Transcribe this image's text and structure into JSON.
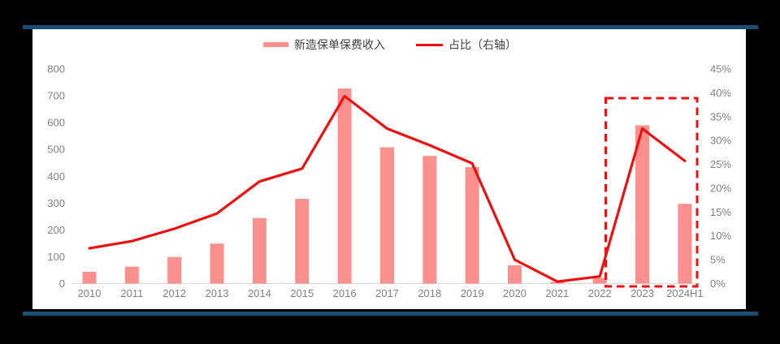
{
  "frame": {
    "canvas_bg": "#000000",
    "panel_bg": "#ffffff",
    "accent_bar_color": "#1B4F72"
  },
  "legend": {
    "items": [
      {
        "swatch": "bar-swatch",
        "label": "新造保单保费收入",
        "color": "#F9908E"
      },
      {
        "swatch": "line-swatch",
        "label": "占比（右轴）",
        "color": "#EE1111"
      }
    ]
  },
  "chart_data": {
    "type": "bar",
    "subtype": "bar+line combo, dual axis",
    "title": "",
    "categories": [
      "2010",
      "2011",
      "2012",
      "2013",
      "2014",
      "2015",
      "2016",
      "2017",
      "2018",
      "2019",
      "2020",
      "2021",
      "2022",
      "2023",
      "2024H1"
    ],
    "series": [
      {
        "name": "新造保单保费收入",
        "type": "bar",
        "axis": "left",
        "color": "#F9908E",
        "values": [
          44,
          63,
          99,
          149,
          244,
          316,
          727,
          508,
          476,
          434,
          68,
          6,
          21,
          590,
          297
        ]
      },
      {
        "name": "占比（右轴）",
        "type": "line",
        "axis": "right",
        "color": "#EE1111",
        "values": [
          7.4,
          8.9,
          11.5,
          14.7,
          21.4,
          24.1,
          39.3,
          32.5,
          29.0,
          25.2,
          5.0,
          0.4,
          1.5,
          32.5,
          25.7
        ]
      }
    ],
    "left_axis": {
      "min": 0,
      "max": 800,
      "step": 100,
      "tick_labels": [
        "0",
        "100",
        "200",
        "300",
        "400",
        "500",
        "600",
        "700",
        "800"
      ]
    },
    "right_axis": {
      "min": 0,
      "max": 45,
      "step": 5,
      "tick_labels": [
        "0%",
        "5%",
        "10%",
        "15%",
        "20%",
        "25%",
        "30%",
        "35%",
        "40%",
        "45%"
      ]
    },
    "gridlines": false,
    "legend_position": "top-center",
    "axis_text_color": "#808080",
    "axis_line_color": "#D9D9D9",
    "highlight_box": {
      "categories": [
        "2023",
        "2024H1"
      ],
      "color": "#F01010",
      "style": "dashed"
    }
  }
}
